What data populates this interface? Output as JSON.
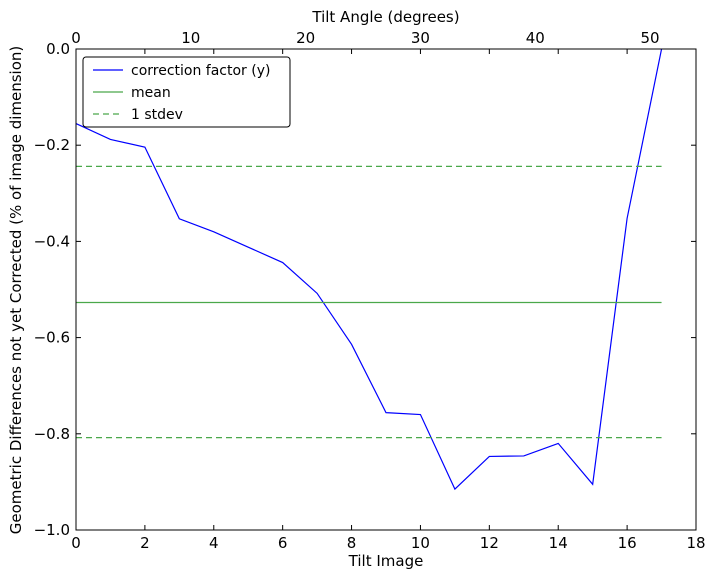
{
  "chart_data": {
    "type": "line",
    "title": "",
    "xlabel": "Tilt Image",
    "x2label": "Tilt Angle (degrees)",
    "ylabel": "Geometric Differences not yet Corrected (% of image dimension)",
    "xlim": [
      0,
      18
    ],
    "ylim": [
      -1.0,
      0.0
    ],
    "x2lim": [
      0,
      54
    ],
    "xticks": [
      0,
      2,
      4,
      6,
      8,
      10,
      12,
      14,
      16,
      18
    ],
    "xtick_labels": [
      "0",
      "2",
      "4",
      "6",
      "8",
      "10",
      "12",
      "14",
      "16",
      "18"
    ],
    "x2ticks": [
      0,
      10,
      20,
      30,
      40,
      50
    ],
    "x2tick_labels": [
      "0",
      "10",
      "20",
      "30",
      "40",
      "50"
    ],
    "yticks": [
      0.0,
      -0.2,
      -0.4,
      -0.6,
      -0.8,
      -1.0
    ],
    "ytick_labels": [
      "0.0",
      "−0.2",
      "−0.4",
      "−0.6",
      "−0.8",
      "−1.0"
    ],
    "grid": false,
    "legend_position": "top-left",
    "series": [
      {
        "name": "correction factor (y)",
        "color": "#0000ff",
        "style": "solid",
        "x": [
          0,
          1,
          2,
          3,
          4,
          5,
          6,
          7,
          8,
          9,
          10,
          11,
          12,
          13,
          14,
          15,
          16,
          17
        ],
        "y": [
          -0.155,
          -0.188,
          -0.204,
          -0.353,
          -0.38,
          -0.412,
          -0.444,
          -0.508,
          -0.614,
          -0.756,
          -0.76,
          -0.915,
          -0.847,
          -0.846,
          -0.82,
          -0.905,
          -0.352,
          0.0
        ]
      },
      {
        "name": "mean",
        "color": "#4aa84a",
        "style": "solid",
        "x": [
          0,
          17
        ],
        "y": [
          -0.527,
          -0.527
        ]
      },
      {
        "name": "1 stdev",
        "color": "#4aa84a",
        "style": "dashed",
        "x": [
          0,
          17
        ],
        "y": [
          -0.244,
          -0.244
        ]
      },
      {
        "name": "",
        "color": "#4aa84a",
        "style": "dashed",
        "x": [
          0,
          17
        ],
        "y": [
          -0.808,
          -0.808
        ]
      }
    ],
    "legend": [
      "correction factor (y)",
      "mean",
      "1 stdev"
    ]
  }
}
